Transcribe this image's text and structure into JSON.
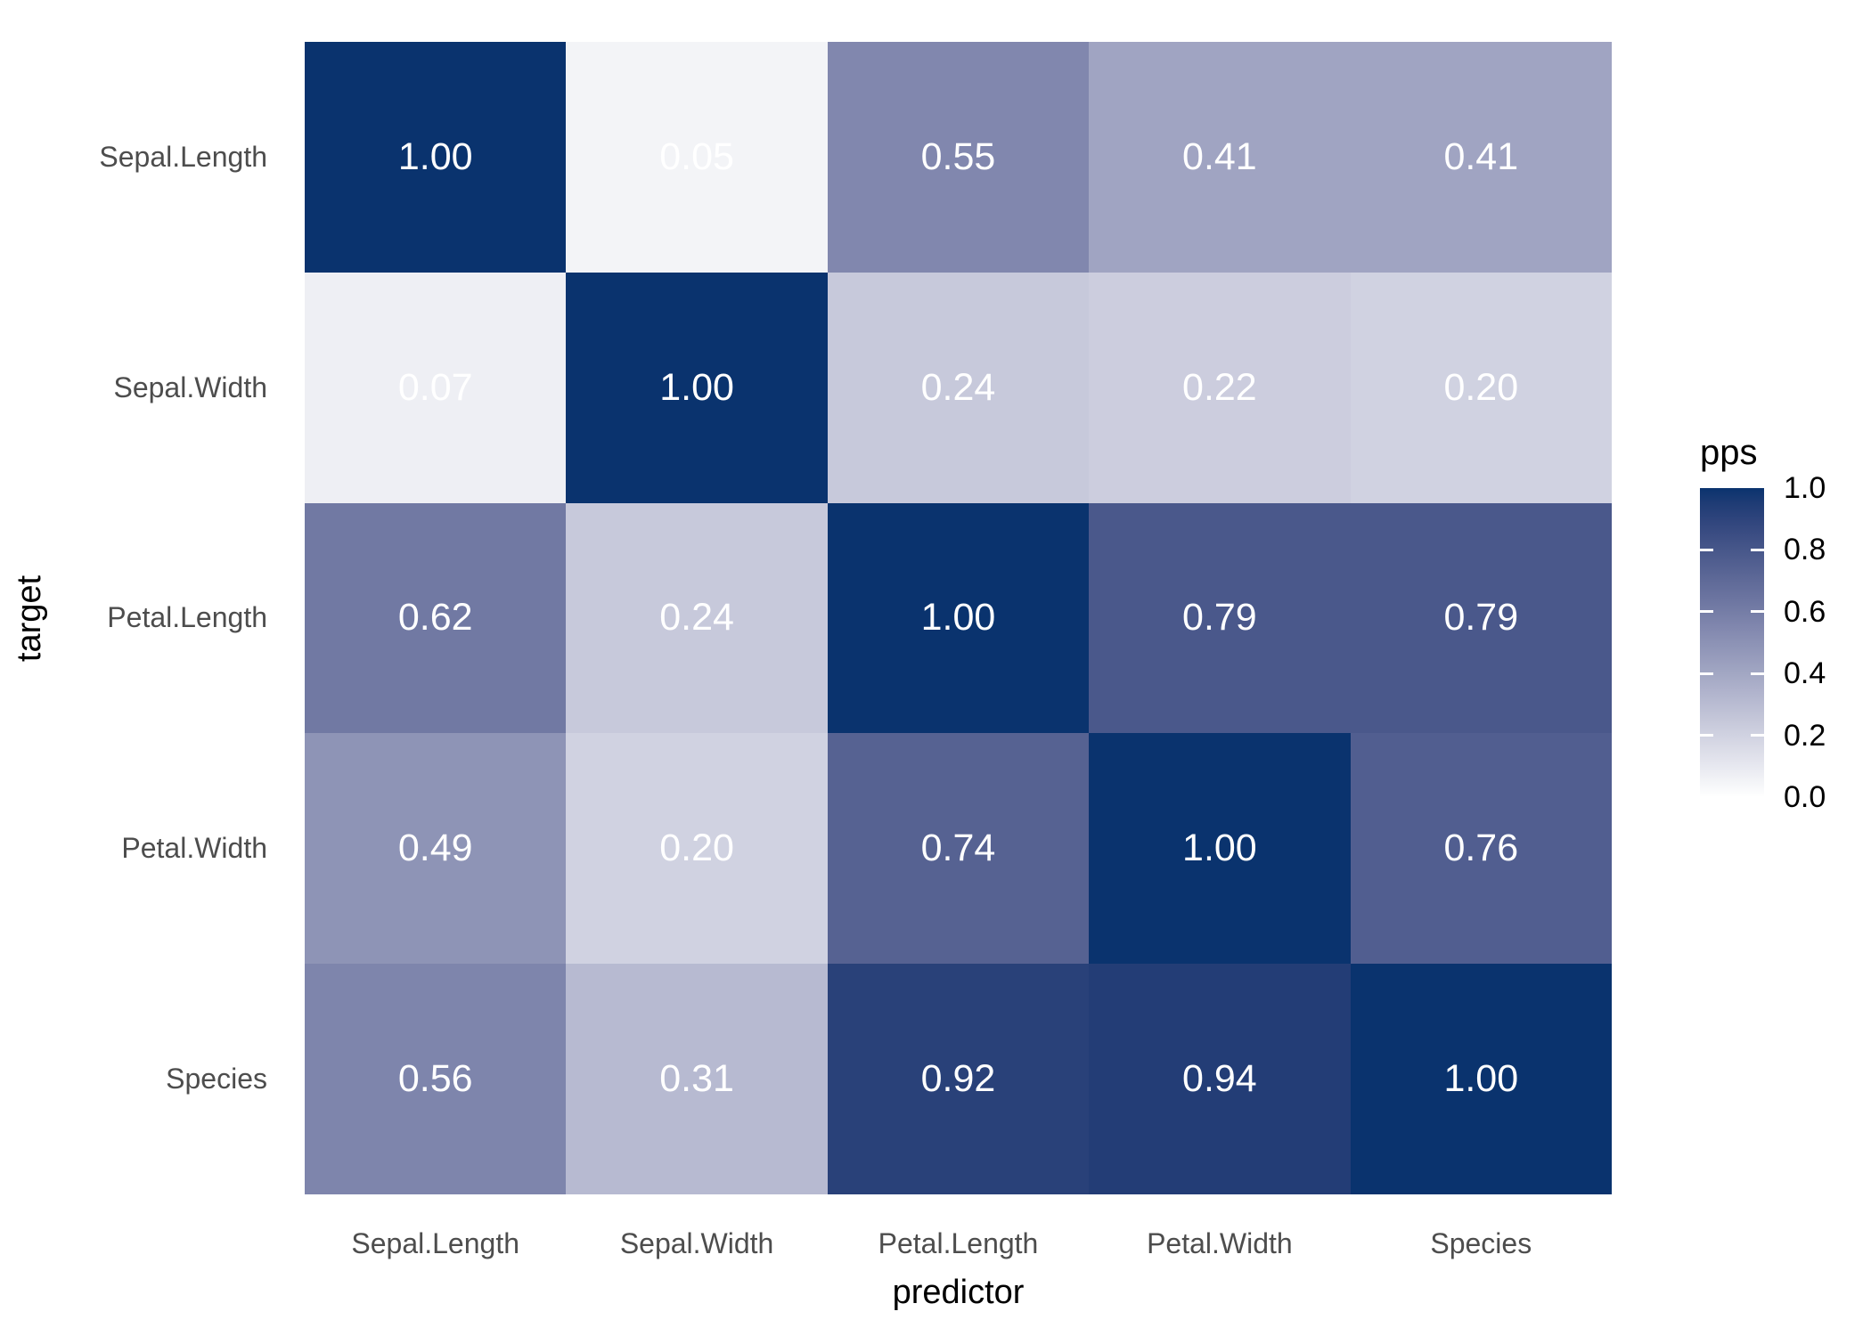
{
  "axis": {
    "x_title": "predictor",
    "y_title": "target",
    "x_labels": [
      "Sepal.Length",
      "Sepal.Width",
      "Petal.Length",
      "Petal.Width",
      "Species"
    ],
    "y_labels": [
      "Sepal.Length",
      "Sepal.Width",
      "Petal.Length",
      "Petal.Width",
      "Species"
    ]
  },
  "legend": {
    "title": "pps",
    "tick_labels": [
      "1.0",
      "0.8",
      "0.6",
      "0.4",
      "0.2",
      "0.0"
    ]
  },
  "colors": {
    "gradient_low": "#ffffff",
    "gradient_high": "#0a336e",
    "axis_text": "#4d4d4d",
    "title_text": "#000000",
    "cell_text": "#ffffff",
    "background": "#ffffff"
  },
  "chart_data": {
    "type": "heatmap",
    "title": "",
    "xlabel": "predictor",
    "ylabel": "target",
    "x": [
      "Sepal.Length",
      "Sepal.Width",
      "Petal.Length",
      "Petal.Width",
      "Species"
    ],
    "y": [
      "Sepal.Length",
      "Sepal.Width",
      "Petal.Length",
      "Petal.Width",
      "Species"
    ],
    "values": [
      [
        1.0,
        0.05,
        0.55,
        0.41,
        0.41
      ],
      [
        0.07,
        1.0,
        0.24,
        0.22,
        0.2
      ],
      [
        0.62,
        0.24,
        1.0,
        0.79,
        0.79
      ],
      [
        0.49,
        0.2,
        0.74,
        1.0,
        0.76
      ],
      [
        0.56,
        0.31,
        0.92,
        0.94,
        1.0
      ]
    ],
    "value_decimals": 2,
    "legend_title": "pps",
    "legend_ticks": [
      1.0,
      0.8,
      0.6,
      0.4,
      0.2,
      0.0
    ],
    "color_low": "#ffffff",
    "color_high": "#0a336e",
    "color_interpolation": "lab",
    "grid": false,
    "legend_position": "right"
  }
}
